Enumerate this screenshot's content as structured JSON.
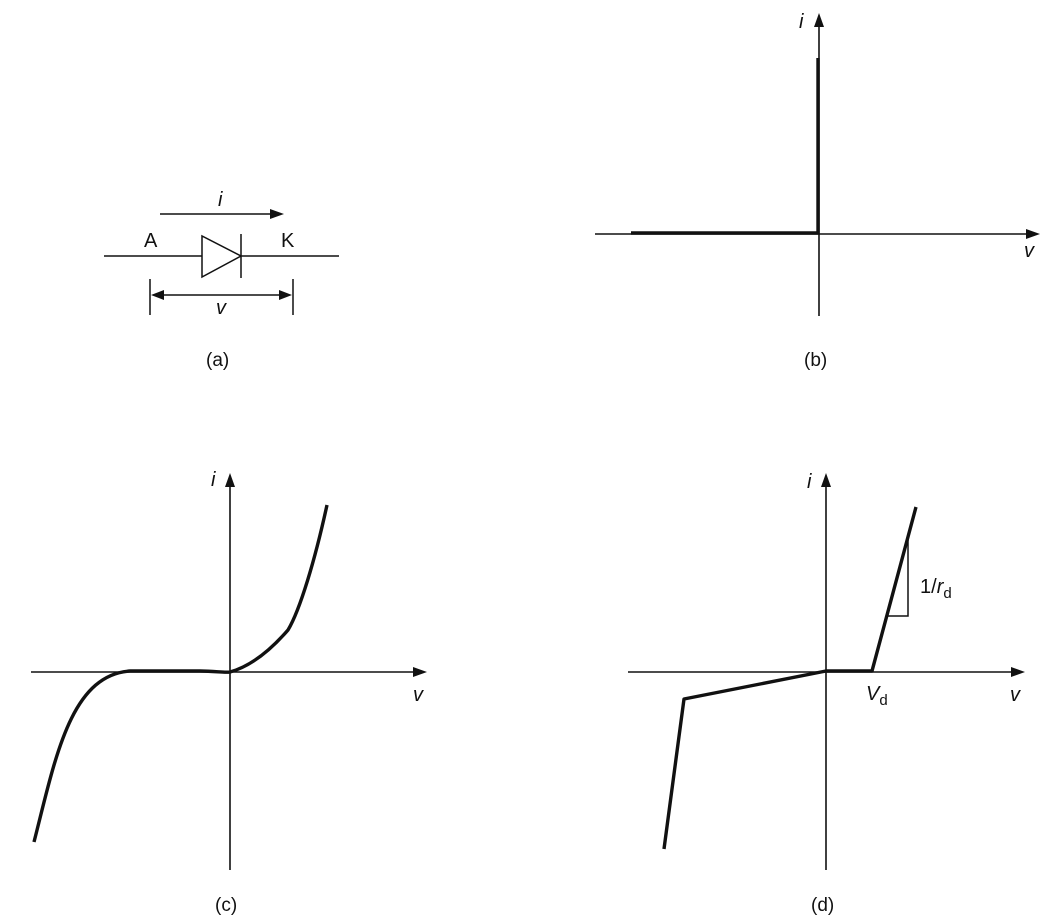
{
  "panel_a": {
    "caption": "(a)",
    "anode_label": "A",
    "cathode_label": "K",
    "current_label": "i",
    "voltage_label": "v"
  },
  "panel_b": {
    "caption": "(b)",
    "x_axis_label": "v",
    "y_axis_label": "i"
  },
  "panel_c": {
    "caption": "(c)",
    "x_axis_label": "v",
    "y_axis_label": "i"
  },
  "panel_d": {
    "caption": "(d)",
    "x_axis_label": "v",
    "y_axis_label": "i",
    "threshold_label": "V",
    "threshold_subscript": "d",
    "slope_label": "1/",
    "slope_var": "r",
    "slope_subscript": "d"
  }
}
